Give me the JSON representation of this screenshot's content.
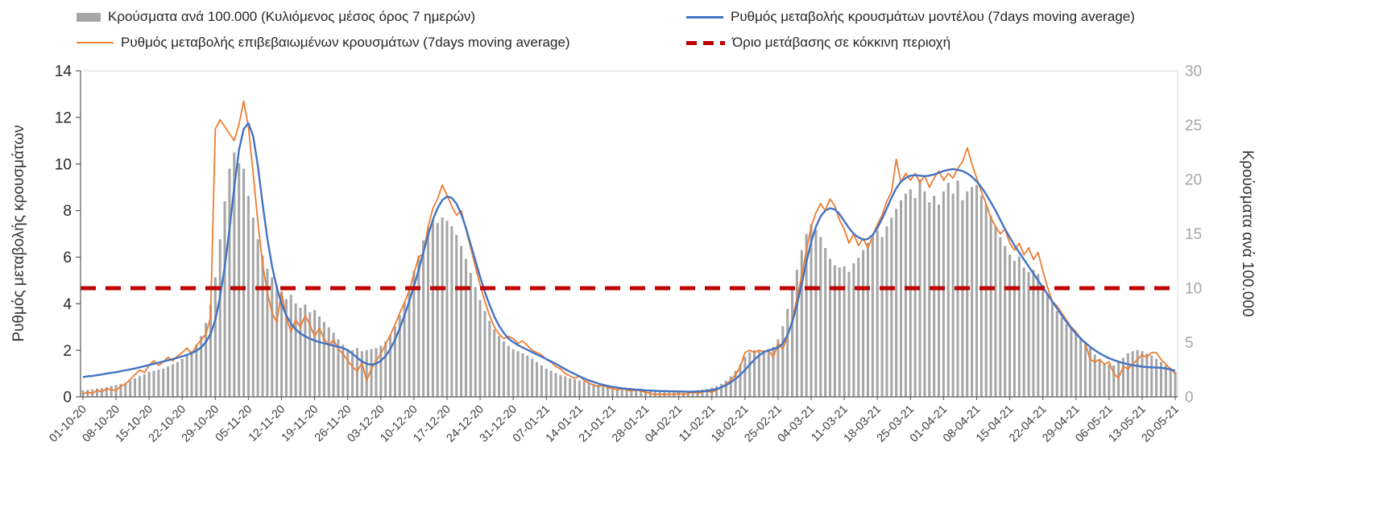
{
  "legend": {
    "bars": "Κρούσματα ανά 100.000 (Κυλιόμενος μέσος όρος 7 ημερών)",
    "model": "Ρυθμός μεταβολής κρουσμάτων μοντέλου (7days moving average)",
    "confirmed": "Ρυθμός μεταβολής επιβεβαιωμένων κρουσμάτων (7days moving average)",
    "threshold": "Όριο μετάβασης σε κόκκινη περιοχή"
  },
  "colors": {
    "bars": "#a6a6a6",
    "model": "#4472c4",
    "confirmed": "#ed7d31",
    "threshold": "#c00000",
    "axis_dark": "#595959",
    "axis_light": "#d9d9d9",
    "tick_left": "#262626",
    "tick_right": "#a6a6a6",
    "tick_x": "#404040"
  },
  "chart_data": {
    "type": "bar",
    "subtype": "combo bar + two lines + threshold, dual y-axes, daily values with weekly x tick labels",
    "start_date": "01-10-20",
    "end_date": "20-05-21",
    "n_days": 232,
    "left_axis": {
      "title": "Ρυθμός μεταβολής κρουσμάτων",
      "min": 0,
      "max": 14,
      "ticks": [
        0,
        2,
        4,
        6,
        8,
        10,
        12,
        14
      ]
    },
    "right_axis": {
      "title": "Κρούσματα ανά 100.000",
      "min": 0,
      "max": 30,
      "ticks": [
        0,
        5,
        10,
        15,
        20,
        25,
        30
      ]
    },
    "grid": "off",
    "legend_position": "top",
    "x_labels": [
      "01-10-20",
      "08-10-20",
      "15-10-20",
      "22-10-20",
      "29-10-20",
      "05-11-20",
      "12-11-20",
      "19-11-20",
      "26-11-20",
      "03-12-20",
      "10-12-20",
      "17-12-20",
      "24-12-20",
      "31-12-20",
      "07-01-21",
      "14-01-21",
      "21-01-21",
      "28-01-21",
      "04-02-21",
      "11-02-21",
      "18-02-21",
      "25-02-21",
      "04-03-21",
      "11-03-21",
      "18-03-21",
      "25-03-21",
      "01-04-21",
      "08-04-21",
      "15-04-21",
      "22-04-21",
      "29-04-21",
      "06-05-21",
      "13-05-21",
      "20-05-21"
    ],
    "x_label_day_index": [
      0,
      7,
      14,
      21,
      28,
      35,
      42,
      49,
      56,
      63,
      70,
      77,
      84,
      91,
      98,
      105,
      112,
      119,
      126,
      133,
      140,
      147,
      154,
      161,
      168,
      175,
      182,
      189,
      196,
      203,
      210,
      217,
      224,
      231
    ],
    "series": [
      {
        "name": "Κρούσματα ανά 100.000 (Κυλιόμενος μέσος όρος 7 ημερών)",
        "type": "bar",
        "axis": "right",
        "values": [
          0.6,
          0.65,
          0.7,
          0.75,
          0.8,
          0.9,
          1.0,
          1.1,
          1.2,
          1.3,
          1.5,
          1.7,
          1.9,
          2.1,
          2.3,
          2.4,
          2.5,
          2.6,
          2.8,
          3.0,
          3.2,
          3.5,
          3.8,
          4.2,
          4.8,
          5.6,
          6.8,
          8.5,
          11.0,
          14.5,
          18.0,
          21.0,
          22.5,
          21.5,
          21.0,
          18.5,
          16.5,
          14.5,
          13.0,
          11.8,
          11.0,
          10.3,
          9.7,
          9.0,
          9.4,
          8.6,
          8.2,
          8.5,
          7.8,
          8.0,
          7.4,
          6.9,
          6.4,
          5.9,
          5.3,
          4.8,
          4.4,
          4.3,
          4.5,
          4.2,
          4.3,
          4.4,
          4.5,
          4.7,
          5.1,
          5.7,
          6.5,
          7.5,
          8.7,
          10.1,
          11.6,
          13.0,
          14.4,
          15.6,
          16.3,
          16.0,
          16.5,
          16.2,
          15.7,
          14.9,
          13.9,
          12.7,
          11.4,
          10.1,
          8.9,
          7.9,
          7.0,
          6.2,
          5.6,
          5.1,
          4.7,
          4.4,
          4.2,
          4.0,
          3.8,
          3.5,
          3.2,
          2.9,
          2.6,
          2.4,
          2.2,
          2.0,
          1.9,
          1.7,
          1.6,
          1.5,
          1.4,
          1.3,
          1.2,
          1.1,
          1.0,
          0.95,
          0.9,
          0.85,
          0.8,
          0.78,
          0.75,
          0.72,
          0.7,
          0.65,
          0.62,
          0.6,
          0.58,
          0.55,
          0.55,
          0.52,
          0.52,
          0.52,
          0.55,
          0.58,
          0.62,
          0.68,
          0.75,
          0.85,
          1.0,
          1.2,
          1.5,
          1.9,
          2.4,
          3.0,
          3.7,
          4.1,
          4.3,
          4.2,
          4.3,
          4.4,
          4.6,
          5.3,
          6.5,
          8.1,
          9.9,
          11.7,
          13.5,
          15.0,
          15.9,
          15.4,
          14.7,
          13.7,
          12.7,
          12.1,
          11.9,
          12.0,
          11.5,
          12.3,
          12.8,
          13.5,
          14.2,
          14.9,
          15.3,
          14.7,
          15.7,
          16.5,
          17.3,
          18.1,
          18.7,
          19.1,
          18.3,
          20.0,
          18.9,
          17.9,
          18.5,
          17.7,
          18.9,
          19.7,
          18.7,
          19.9,
          18.1,
          18.9,
          19.3,
          19.5,
          18.5,
          17.7,
          16.7,
          15.7,
          14.7,
          13.9,
          13.1,
          12.5,
          12.9,
          11.9,
          11.5,
          11.7,
          11.3,
          10.3,
          9.5,
          8.7,
          7.9,
          7.3,
          6.7,
          6.3,
          5.9,
          5.5,
          5.1,
          4.5,
          3.9,
          3.5,
          3.1,
          3.0,
          2.9,
          3.2,
          3.6,
          4.0,
          4.2,
          4.3,
          4.2,
          4.0,
          3.8,
          3.5,
          3.2,
          2.9,
          2.6,
          2.3
        ]
      },
      {
        "name": "Ρυθμός μεταβολής κρουσμάτων μοντέλου (7days moving average)",
        "type": "line",
        "axis": "left",
        "values": [
          0.85,
          0.88,
          0.9,
          0.93,
          0.96,
          1.0,
          1.03,
          1.06,
          1.1,
          1.14,
          1.18,
          1.22,
          1.27,
          1.32,
          1.37,
          1.42,
          1.47,
          1.52,
          1.57,
          1.62,
          1.68,
          1.74,
          1.8,
          1.88,
          1.98,
          2.12,
          2.35,
          2.7,
          3.3,
          4.3,
          5.6,
          7.2,
          9.0,
          10.6,
          11.5,
          11.75,
          11.2,
          9.9,
          8.3,
          6.8,
          5.6,
          4.7,
          4.0,
          3.5,
          3.15,
          2.9,
          2.72,
          2.6,
          2.5,
          2.42,
          2.35,
          2.3,
          2.25,
          2.2,
          2.15,
          2.1,
          2.0,
          1.85,
          1.68,
          1.52,
          1.42,
          1.38,
          1.42,
          1.55,
          1.75,
          2.05,
          2.45,
          2.95,
          3.5,
          4.1,
          4.75,
          5.45,
          6.2,
          6.95,
          7.6,
          8.1,
          8.45,
          8.6,
          8.55,
          8.3,
          7.85,
          7.25,
          6.55,
          5.85,
          5.15,
          4.5,
          3.95,
          3.45,
          3.05,
          2.75,
          2.5,
          2.35,
          2.22,
          2.12,
          2.02,
          1.92,
          1.82,
          1.72,
          1.62,
          1.52,
          1.42,
          1.3,
          1.19,
          1.08,
          0.98,
          0.88,
          0.79,
          0.71,
          0.64,
          0.57,
          0.52,
          0.47,
          0.43,
          0.4,
          0.37,
          0.35,
          0.33,
          0.31,
          0.3,
          0.28,
          0.27,
          0.26,
          0.25,
          0.25,
          0.24,
          0.24,
          0.23,
          0.23,
          0.22,
          0.22,
          0.23,
          0.24,
          0.26,
          0.29,
          0.34,
          0.41,
          0.5,
          0.62,
          0.77,
          0.95,
          1.15,
          1.38,
          1.6,
          1.78,
          1.92,
          2.0,
          2.06,
          2.12,
          2.3,
          2.65,
          3.2,
          3.95,
          4.85,
          5.8,
          6.65,
          7.3,
          7.75,
          8.0,
          8.1,
          8.05,
          7.85,
          7.55,
          7.25,
          7.0,
          6.85,
          6.75,
          6.78,
          6.95,
          7.25,
          7.65,
          8.1,
          8.55,
          8.95,
          9.25,
          9.4,
          9.5,
          9.52,
          9.5,
          9.48,
          9.5,
          9.55,
          9.62,
          9.7,
          9.75,
          9.78,
          9.75,
          9.7,
          9.6,
          9.45,
          9.25,
          9.0,
          8.7,
          8.35,
          8.0,
          7.6,
          7.2,
          6.85,
          6.5,
          6.2,
          5.9,
          5.6,
          5.3,
          5.0,
          4.7,
          4.4,
          4.1,
          3.8,
          3.5,
          3.22,
          2.95,
          2.72,
          2.5,
          2.32,
          2.15,
          2.0,
          1.87,
          1.76,
          1.66,
          1.58,
          1.51,
          1.45,
          1.4,
          1.36,
          1.33,
          1.3,
          1.28,
          1.27,
          1.26,
          1.25,
          1.22,
          1.18,
          1.12
        ]
      },
      {
        "name": "Ρυθμός μεταβολής επιβεβαιωμένων κρουσμάτων (7days moving average)",
        "type": "line",
        "axis": "left",
        "values": [
          0.12,
          0.2,
          0.15,
          0.28,
          0.22,
          0.35,
          0.3,
          0.28,
          0.45,
          0.55,
          0.75,
          0.95,
          1.15,
          1.05,
          1.35,
          1.55,
          1.35,
          1.5,
          1.7,
          1.55,
          1.75,
          1.9,
          2.1,
          1.85,
          2.2,
          2.45,
          2.7,
          3.4,
          11.5,
          11.9,
          11.6,
          11.3,
          11.0,
          11.7,
          12.7,
          11.6,
          9.6,
          7.5,
          5.7,
          4.5,
          3.6,
          3.2,
          4.5,
          3.4,
          2.8,
          3.3,
          3.0,
          3.5,
          3.1,
          2.6,
          2.95,
          2.5,
          2.2,
          2.45,
          2.05,
          1.85,
          1.55,
          1.3,
          1.1,
          1.45,
          0.7,
          1.2,
          1.55,
          1.85,
          2.25,
          2.65,
          3.1,
          3.6,
          4.05,
          4.55,
          5.3,
          6.0,
          6.15,
          7.3,
          8.1,
          8.5,
          9.1,
          8.65,
          8.2,
          7.8,
          8.0,
          7.2,
          6.4,
          5.6,
          4.8,
          4.1,
          3.5,
          3.0,
          2.7,
          2.5,
          2.6,
          2.5,
          2.3,
          2.4,
          2.2,
          2.0,
          1.9,
          1.8,
          1.6,
          1.5,
          1.3,
          1.2,
          1.0,
          0.9,
          0.8,
          0.9,
          0.7,
          0.6,
          0.5,
          0.45,
          0.5,
          0.4,
          0.35,
          0.3,
          0.35,
          0.3,
          0.25,
          0.3,
          0.25,
          0.2,
          0.15,
          0.1,
          0.12,
          0.1,
          0.12,
          0.1,
          0.15,
          0.1,
          0.15,
          0.2,
          0.15,
          0.2,
          0.25,
          0.2,
          0.3,
          0.4,
          0.55,
          0.7,
          0.95,
          1.3,
          1.9,
          2.0,
          1.9,
          2.0,
          1.92,
          2.0,
          1.7,
          2.3,
          2.05,
          2.6,
          3.3,
          4.2,
          5.2,
          6.3,
          7.3,
          7.9,
          8.3,
          8.0,
          8.5,
          8.2,
          7.6,
          7.2,
          6.6,
          7.0,
          6.5,
          6.8,
          6.4,
          6.9,
          7.4,
          7.8,
          8.4,
          8.8,
          10.2,
          9.2,
          9.6,
          9.3,
          9.6,
          9.2,
          9.5,
          9.0,
          9.4,
          9.7,
          9.3,
          9.6,
          9.4,
          9.8,
          10.1,
          10.7,
          10.0,
          9.4,
          8.8,
          8.3,
          7.7,
          7.3,
          7.0,
          7.2,
          6.6,
          6.3,
          6.6,
          6.1,
          6.4,
          5.9,
          6.2,
          5.4,
          4.7,
          4.1,
          3.9,
          3.6,
          3.3,
          3.0,
          2.8,
          2.5,
          2.3,
          1.6,
          1.5,
          1.6,
          1.4,
          1.5,
          1.0,
          0.8,
          1.3,
          1.2,
          1.4,
          1.6,
          1.8,
          1.7,
          1.9,
          1.9,
          1.6,
          1.4,
          1.2,
          1.0
        ]
      },
      {
        "name": "Όριο μετάβασης σε κόκκινη περιοχή",
        "type": "threshold",
        "axis": "right",
        "value": 10
      }
    ]
  }
}
